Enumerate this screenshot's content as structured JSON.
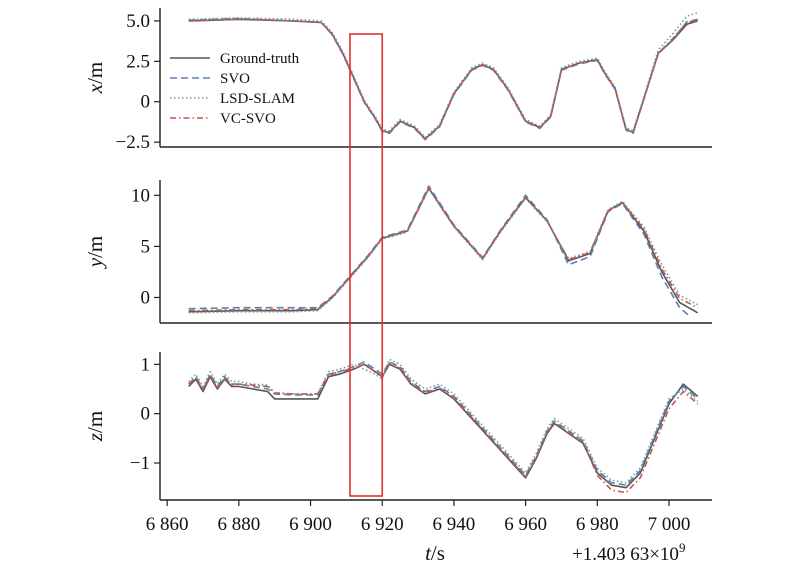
{
  "chart_data": {
    "type": "line",
    "x_axis": {
      "label_italic": "t",
      "label_unit": "/s",
      "ticks": [
        6860,
        6880,
        6900,
        6920,
        6940,
        6960,
        6980,
        7000
      ],
      "tick_labels": [
        "6 860",
        "6 880",
        "6 900",
        "6 920",
        "6 940",
        "6 960",
        "6 980",
        "7 000"
      ],
      "xlim": [
        6858,
        7012
      ],
      "offset_prefix": "+1.403 63×10",
      "offset_exponent": "9"
    },
    "legend": {
      "position": "top-left of first panel",
      "entries": [
        {
          "name": "Ground-truth",
          "color": "#555555",
          "dash": "solid"
        },
        {
          "name": "SVO",
          "color": "#5b7fb5",
          "dash": "dashed"
        },
        {
          "name": "LSD-SLAM",
          "color": "#6aa39b",
          "dash": "dotted"
        },
        {
          "name": "VC-SVO",
          "color": "#c8554c",
          "dash": "dashdot"
        }
      ]
    },
    "highlight_box": {
      "x_start": 6911,
      "x_end": 6920,
      "color": "#e03030"
    },
    "panels": [
      {
        "id": "x",
        "ylabel_italic": "x",
        "ylabel_unit": "/m",
        "ylim": [
          -2.8,
          5.8
        ],
        "yticks": [
          5.0,
          2.5,
          0,
          -2.5
        ],
        "ytick_labels": [
          "5.0",
          "2.5",
          "0",
          "−2.5"
        ],
        "series": [
          {
            "name": "Ground-truth",
            "x": [
              6866,
              6880,
              6895,
              6903,
              6906,
              6909,
              6912,
              6915,
              6918,
              6920,
              6922,
              6925,
              6929,
              6932,
              6936,
              6940,
              6945,
              6948,
              6951,
              6955,
              6960,
              6964,
              6967,
              6970,
              6975,
              6980,
              6982,
              6985,
              6988,
              6990,
              6993,
              6997,
              7001,
              7005,
              7008
            ],
            "y": [
              5.0,
              5.1,
              5.0,
              4.9,
              4.2,
              3.0,
              1.5,
              0.0,
              -1.0,
              -1.8,
              -1.9,
              -1.2,
              -1.6,
              -2.3,
              -1.5,
              0.5,
              2.0,
              2.3,
              2.0,
              0.8,
              -1.2,
              -1.6,
              -0.9,
              2.0,
              2.4,
              2.6,
              1.8,
              0.8,
              -1.7,
              -1.9,
              0.2,
              3.0,
              3.8,
              4.8,
              5.0
            ]
          },
          {
            "name": "SVO",
            "x": [
              6866,
              6880,
              6895,
              6903,
              6906,
              6909,
              6912,
              6915,
              6918,
              6920,
              6922,
              6925,
              6929,
              6932,
              6936,
              6940,
              6945,
              6948,
              6951,
              6955,
              6960,
              6964,
              6967,
              6970,
              6975,
              6980,
              6982,
              6985,
              6988,
              6990,
              6993,
              6997,
              7001,
              7005,
              7008
            ],
            "y": [
              5.05,
              5.15,
              5.0,
              4.9,
              4.15,
              2.95,
              1.45,
              -0.05,
              -1.05,
              -1.85,
              -1.95,
              -1.25,
              -1.65,
              -2.35,
              -1.55,
              0.45,
              1.95,
              2.25,
              1.95,
              0.75,
              -1.25,
              -1.65,
              -0.95,
              1.95,
              2.35,
              2.55,
              1.75,
              0.75,
              -1.75,
              -1.95,
              0.15,
              2.95,
              3.85,
              4.95,
              5.1
            ]
          },
          {
            "name": "LSD-SLAM",
            "x": [
              6866,
              6880,
              6895,
              6903,
              6906,
              6909,
              6912,
              6915,
              6918,
              6920,
              6922,
              6925,
              6929,
              6932,
              6936,
              6940,
              6945,
              6948,
              6951,
              6955,
              6960,
              6964,
              6967,
              6970,
              6975,
              6980,
              6982,
              6985,
              6988,
              6990,
              6993,
              6997,
              7001,
              7005,
              7008
            ],
            "y": [
              5.1,
              5.2,
              5.1,
              5.0,
              4.3,
              3.1,
              1.6,
              0.1,
              -0.9,
              -1.7,
              -1.8,
              -1.1,
              -1.5,
              -2.2,
              -1.4,
              0.6,
              2.1,
              2.4,
              2.1,
              0.9,
              -1.1,
              -1.5,
              -0.8,
              2.1,
              2.5,
              2.7,
              1.9,
              0.9,
              -1.6,
              -1.8,
              0.3,
              3.2,
              4.2,
              5.3,
              5.5
            ]
          },
          {
            "name": "VC-SVO",
            "x": [
              6866,
              6880,
              6895,
              6903,
              6906,
              6909,
              6912,
              6915,
              6918,
              6920,
              6922,
              6925,
              6929,
              6932,
              6936,
              6940,
              6945,
              6948,
              6951,
              6955,
              6960,
              6964,
              6967,
              6970,
              6975,
              6980,
              6982,
              6985,
              6988,
              6990,
              6993,
              6997,
              7001,
              7005,
              7008
            ],
            "y": [
              5.0,
              5.1,
              5.0,
              4.9,
              4.2,
              3.0,
              1.5,
              0.0,
              -1.0,
              -1.8,
              -1.9,
              -1.2,
              -1.6,
              -2.3,
              -1.5,
              0.5,
              2.0,
              2.3,
              2.0,
              0.8,
              -1.2,
              -1.6,
              -0.9,
              2.0,
              2.4,
              2.6,
              1.8,
              0.8,
              -1.7,
              -1.9,
              0.2,
              3.0,
              3.9,
              4.9,
              5.05
            ]
          }
        ]
      },
      {
        "id": "y",
        "ylabel_italic": "y",
        "ylabel_unit": "/m",
        "ylim": [
          -2.5,
          11.5
        ],
        "yticks": [
          10,
          5,
          0
        ],
        "ytick_labels": [
          "10",
          "5",
          "0"
        ],
        "series": [
          {
            "name": "Ground-truth",
            "x": [
              6866,
              6880,
              6895,
              6902,
              6906,
              6911,
              6916,
              6920,
              6927,
              6933,
              6940,
              6948,
              6953,
              6960,
              6966,
              6972,
              6978,
              6983,
              6987,
              6993,
              6998,
              7003,
              7008
            ],
            "y": [
              -1.4,
              -1.3,
              -1.3,
              -1.2,
              0.0,
              2.0,
              4.0,
              5.8,
              6.5,
              10.7,
              7.0,
              3.8,
              6.5,
              9.8,
              7.5,
              3.6,
              4.3,
              8.5,
              9.3,
              6.5,
              2.5,
              -0.5,
              -1.5
            ]
          },
          {
            "name": "SVO",
            "x": [
              6866,
              6880,
              6895,
              6902,
              6906,
              6911,
              6916,
              6920,
              6927,
              6933,
              6940,
              6948,
              6953,
              6960,
              6966,
              6972,
              6978,
              6983,
              6987,
              6993,
              6998,
              7003,
              7006
            ],
            "y": [
              -1.1,
              -1.0,
              -1.0,
              -1.0,
              0.1,
              2.1,
              4.1,
              5.9,
              6.6,
              10.9,
              7.1,
              3.9,
              6.6,
              10.0,
              7.6,
              3.2,
              4.0,
              8.4,
              9.2,
              6.2,
              2.0,
              -1.0,
              -1.9
            ]
          },
          {
            "name": "LSD-SLAM",
            "x": [
              6866,
              6880,
              6895,
              6902,
              6906,
              6911,
              6916,
              6920,
              6927,
              6933,
              6940,
              6948,
              6953,
              6960,
              6966,
              6972,
              6978,
              6983,
              6987,
              6993,
              6998,
              7003,
              7008
            ],
            "y": [
              -1.5,
              -1.4,
              -1.4,
              -1.3,
              -0.1,
              1.9,
              3.9,
              5.7,
              6.4,
              10.6,
              6.9,
              3.7,
              6.4,
              9.7,
              7.4,
              3.8,
              4.5,
              8.6,
              9.4,
              6.9,
              3.2,
              0.2,
              -0.7
            ]
          },
          {
            "name": "VC-SVO",
            "x": [
              6866,
              6880,
              6895,
              6902,
              6906,
              6911,
              6916,
              6920,
              6927,
              6933,
              6940,
              6948,
              6953,
              6960,
              6966,
              6972,
              6978,
              6983,
              6987,
              6993,
              6998,
              7003,
              7008
            ],
            "y": [
              -1.3,
              -1.2,
              -1.2,
              -1.1,
              0.0,
              2.0,
              4.0,
              5.8,
              6.5,
              10.7,
              7.0,
              3.8,
              6.5,
              9.8,
              7.5,
              3.7,
              4.4,
              8.5,
              9.3,
              6.7,
              2.8,
              -0.1,
              -1.0
            ]
          }
        ]
      },
      {
        "id": "z",
        "ylabel_italic": "z",
        "ylabel_unit": "/m",
        "ylim": [
          -1.75,
          1.25
        ],
        "yticks": [
          1,
          0,
          -1
        ],
        "ytick_labels": [
          "1",
          "0",
          "−1"
        ],
        "series": [
          {
            "name": "Ground-truth",
            "x": [
              6866,
              6868,
              6870,
              6872,
              6874,
              6876,
              6878,
              6880,
              6884,
              6888,
              6890,
              6895,
              6902,
              6905,
              6908,
              6912,
              6915,
              6918,
              6920,
              6922,
              6925,
              6928,
              6932,
              6936,
              6940,
              6945,
              6950,
              6955,
              6960,
              6963,
              6966,
              6968,
              6972,
              6976,
              6980,
              6984,
              6988,
              6992,
              6996,
              7000,
              7004,
              7008
            ],
            "y": [
              0.55,
              0.7,
              0.45,
              0.75,
              0.5,
              0.7,
              0.55,
              0.55,
              0.5,
              0.45,
              0.3,
              0.3,
              0.3,
              0.75,
              0.8,
              0.9,
              1.0,
              0.85,
              0.75,
              1.0,
              0.9,
              0.6,
              0.4,
              0.5,
              0.3,
              -0.1,
              -0.5,
              -0.9,
              -1.3,
              -0.9,
              -0.4,
              -0.2,
              -0.4,
              -0.6,
              -1.2,
              -1.45,
              -1.5,
              -1.2,
              -0.5,
              0.2,
              0.6,
              0.35
            ]
          },
          {
            "name": "SVO",
            "x": [
              6866,
              6868,
              6870,
              6872,
              6874,
              6876,
              6878,
              6880,
              6884,
              6888,
              6890,
              6895,
              6902,
              6905,
              6908,
              6912,
              6915,
              6918,
              6920,
              6922,
              6925,
              6928,
              6932,
              6936,
              6940,
              6945,
              6950,
              6955,
              6960,
              6963,
              6966,
              6968,
              6972,
              6976,
              6980,
              6984,
              6988,
              6992,
              6996,
              7000,
              7004,
              7008
            ],
            "y": [
              0.6,
              0.75,
              0.5,
              0.8,
              0.55,
              0.75,
              0.6,
              0.6,
              0.55,
              0.5,
              0.4,
              0.38,
              0.38,
              0.8,
              0.85,
              0.95,
              1.05,
              0.9,
              0.8,
              1.05,
              0.95,
              0.65,
              0.45,
              0.55,
              0.35,
              -0.05,
              -0.45,
              -0.85,
              -1.25,
              -0.85,
              -0.35,
              -0.15,
              -0.35,
              -0.55,
              -1.15,
              -1.4,
              -1.45,
              -1.15,
              -0.45,
              0.25,
              0.55,
              0.3
            ]
          },
          {
            "name": "LSD-SLAM",
            "x": [
              6866,
              6868,
              6870,
              6872,
              6874,
              6876,
              6878,
              6880,
              6884,
              6888,
              6890,
              6895,
              6902,
              6905,
              6908,
              6912,
              6915,
              6918,
              6920,
              6922,
              6925,
              6928,
              6932,
              6936,
              6940,
              6945,
              6950,
              6955,
              6960,
              6963,
              6966,
              6968,
              6972,
              6976,
              6980,
              6984,
              6988,
              6992,
              6996,
              7000,
              7004,
              7008
            ],
            "y": [
              0.65,
              0.8,
              0.55,
              0.85,
              0.6,
              0.8,
              0.65,
              0.65,
              0.6,
              0.58,
              0.42,
              0.4,
              0.4,
              0.85,
              0.9,
              1.0,
              0.9,
              0.8,
              0.7,
              1.1,
              1.0,
              0.7,
              0.5,
              0.6,
              0.4,
              0.0,
              -0.4,
              -0.8,
              -1.2,
              -0.8,
              -0.3,
              -0.1,
              -0.3,
              -0.5,
              -1.1,
              -1.35,
              -1.4,
              -1.1,
              -0.4,
              0.3,
              0.5,
              0.25
            ]
          },
          {
            "name": "VC-SVO",
            "x": [
              6866,
              6868,
              6870,
              6872,
              6874,
              6876,
              6878,
              6880,
              6884,
              6888,
              6890,
              6895,
              6902,
              6905,
              6908,
              6912,
              6915,
              6918,
              6920,
              6922,
              6925,
              6928,
              6932,
              6936,
              6940,
              6945,
              6950,
              6955,
              6960,
              6963,
              6966,
              6968,
              6972,
              6976,
              6980,
              6984,
              6988,
              6992,
              6996,
              7000,
              7004,
              7008
            ],
            "y": [
              0.6,
              0.72,
              0.48,
              0.78,
              0.52,
              0.72,
              0.58,
              0.6,
              0.58,
              0.55,
              0.42,
              0.4,
              0.4,
              0.78,
              0.85,
              0.92,
              1.0,
              0.85,
              0.75,
              1.02,
              0.92,
              0.62,
              0.42,
              0.52,
              0.32,
              -0.08,
              -0.48,
              -0.88,
              -1.28,
              -0.88,
              -0.38,
              -0.18,
              -0.38,
              -0.58,
              -1.25,
              -1.55,
              -1.6,
              -1.3,
              -0.6,
              0.1,
              0.45,
              0.2
            ]
          }
        ]
      }
    ]
  }
}
